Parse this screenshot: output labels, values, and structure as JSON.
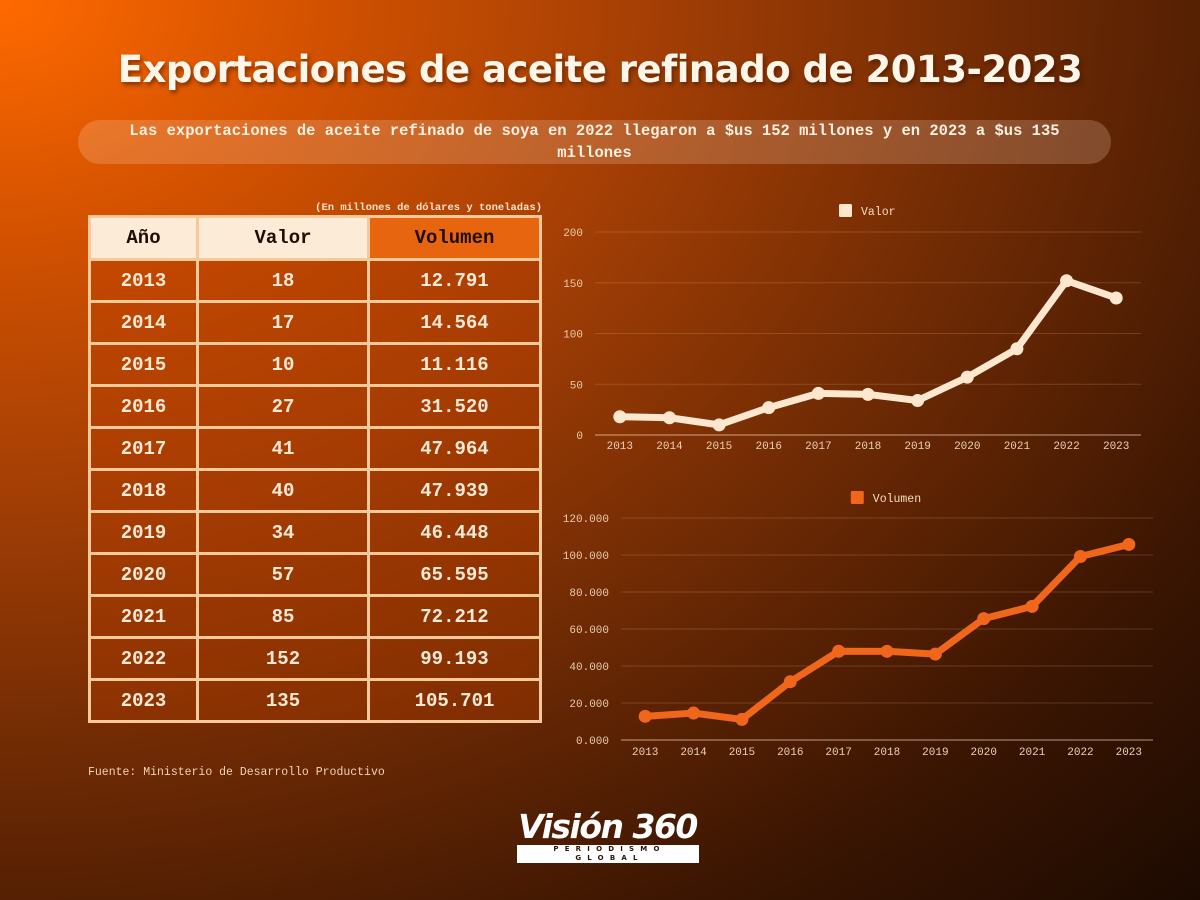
{
  "header": {
    "title": "Exportaciones de aceite refinado de 2013-2023",
    "subtitle": "Las exportaciones de aceite refinado de soya en 2022 llegaron a $us 152 millones y en 2023 a $us 135 millones"
  },
  "table": {
    "unit_note": "(En millones de dólares y toneladas)",
    "headers": [
      "Año",
      "Valor",
      "Volumen"
    ],
    "rows": [
      {
        "year": "2013",
        "valor": "18",
        "volumen": "12.791"
      },
      {
        "year": "2014",
        "valor": "17",
        "volumen": "14.564"
      },
      {
        "year": "2015",
        "valor": "10",
        "volumen": "11.116"
      },
      {
        "year": "2016",
        "valor": "27",
        "volumen": "31.520"
      },
      {
        "year": "2017",
        "valor": "41",
        "volumen": "47.964"
      },
      {
        "year": "2018",
        "valor": "40",
        "volumen": "47.939"
      },
      {
        "year": "2019",
        "valor": "34",
        "volumen": "46.448"
      },
      {
        "year": "2020",
        "valor": "57",
        "volumen": "65.595"
      },
      {
        "year": "2021",
        "valor": "85",
        "volumen": "72.212"
      },
      {
        "year": "2022",
        "valor": "152",
        "volumen": "99.193"
      },
      {
        "year": "2023",
        "valor": "135",
        "volumen": "105.701"
      }
    ],
    "source": "Fuente: Ministerio de Desarrollo Productivo"
  },
  "chart_data": [
    {
      "type": "line",
      "title": "",
      "legend": "Valor",
      "legend_position": "top-center",
      "color": "#fde8cf",
      "x": [
        "2013",
        "2014",
        "2015",
        "2016",
        "2017",
        "2018",
        "2019",
        "2020",
        "2021",
        "2022",
        "2023"
      ],
      "values": [
        18,
        17,
        10,
        27,
        41,
        40,
        34,
        57,
        85,
        152,
        135
      ],
      "ylim": [
        0,
        200
      ],
      "yticks": [
        0,
        50,
        100,
        150,
        200
      ],
      "ytick_labels": [
        "0",
        "50",
        "100",
        "150",
        "200"
      ],
      "xlabel": "",
      "ylabel": "",
      "grid": true
    },
    {
      "type": "line",
      "title": "",
      "legend": "Volumen",
      "legend_position": "top-center",
      "color": "#f0661a",
      "x": [
        "2013",
        "2014",
        "2015",
        "2016",
        "2017",
        "2018",
        "2019",
        "2020",
        "2021",
        "2022",
        "2023"
      ],
      "values": [
        12791,
        14564,
        11116,
        31520,
        47964,
        47939,
        46448,
        65595,
        72212,
        99193,
        105701
      ],
      "ylim": [
        0,
        120000
      ],
      "yticks": [
        0,
        20000,
        40000,
        60000,
        80000,
        100000,
        120000
      ],
      "ytick_labels": [
        "0.000",
        "20.000",
        "40.000",
        "60.000",
        "80.000",
        "100.000",
        "120.000"
      ],
      "xlabel": "",
      "ylabel": "",
      "grid": true
    }
  ],
  "logo": {
    "name": "Visión 360",
    "tagline": "PERIODISMO GLOBAL"
  }
}
